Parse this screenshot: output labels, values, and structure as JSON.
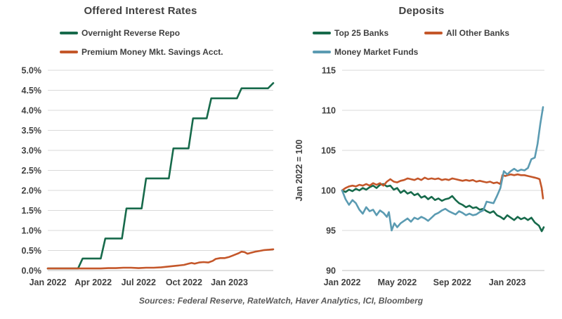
{
  "source_note": "Sources: Federal Reserve, RateWatch, Haver Analytics, ICI, Bloomberg",
  "colors": {
    "green": "#176a4b",
    "orange": "#c4572a",
    "blue": "#5b9bb2",
    "grid": "#d9d9d9",
    "axis": "#bfbfbf",
    "text": "#404040",
    "source_text": "#595959"
  },
  "chart_data": [
    {
      "id": "rates",
      "type": "line",
      "title": "Offered Interest Rates",
      "xlabel": "",
      "ylabel": "",
      "xlim": [
        0,
        14.9
      ],
      "ylim": [
        0,
        5
      ],
      "grid": true,
      "legend_position": "top-left-stacked",
      "y_ticks": [
        0,
        0.5,
        1,
        1.5,
        2,
        2.5,
        3,
        3.5,
        4,
        4.5,
        5
      ],
      "y_tick_labels": [
        "0.0%",
        "0.5%",
        "1.0%",
        "1.5%",
        "2.0%",
        "2.5%",
        "3.0%",
        "3.5%",
        "4.0%",
        "4.5%",
        "5.0%"
      ],
      "x_ticks": [
        {
          "v": 0,
          "label": "Jan 2022"
        },
        {
          "v": 3,
          "label": "Apr 2022"
        },
        {
          "v": 6,
          "label": "Jul 2022"
        },
        {
          "v": 9,
          "label": "Oct 2022"
        },
        {
          "v": 12,
          "label": "Jan 2023"
        }
      ],
      "legend_rows": [
        [
          0
        ],
        [
          1
        ]
      ],
      "series": [
        {
          "name": "Overnight Reverse Repo",
          "color": "green",
          "points": [
            [
              0,
              0.05
            ],
            [
              2,
              0.05
            ],
            [
              2.3,
              0.3
            ],
            [
              3.5,
              0.3
            ],
            [
              3.8,
              0.8
            ],
            [
              4.9,
              0.8
            ],
            [
              5.2,
              1.55
            ],
            [
              6.2,
              1.55
            ],
            [
              6.5,
              2.3
            ],
            [
              8,
              2.3
            ],
            [
              8.3,
              3.05
            ],
            [
              9.3,
              3.05
            ],
            [
              9.6,
              3.8
            ],
            [
              10.5,
              3.8
            ],
            [
              10.8,
              4.3
            ],
            [
              12.5,
              4.3
            ],
            [
              12.8,
              4.55
            ],
            [
              14.55,
              4.55
            ],
            [
              14.9,
              4.68
            ]
          ]
        },
        {
          "name": "Premium Money Mkt. Savings Acct.",
          "color": "orange",
          "points": [
            [
              0,
              0.05
            ],
            [
              1,
              0.05
            ],
            [
              2,
              0.05
            ],
            [
              3,
              0.05
            ],
            [
              3.5,
              0.05
            ],
            [
              4,
              0.06
            ],
            [
              4.5,
              0.06
            ],
            [
              5,
              0.07
            ],
            [
              5.5,
              0.07
            ],
            [
              6,
              0.06
            ],
            [
              6.5,
              0.07
            ],
            [
              7,
              0.07
            ],
            [
              7.5,
              0.08
            ],
            [
              8,
              0.1
            ],
            [
              8.5,
              0.12
            ],
            [
              9,
              0.14
            ],
            [
              9.3,
              0.17
            ],
            [
              9.5,
              0.19
            ],
            [
              9.7,
              0.17
            ],
            [
              10,
              0.2
            ],
            [
              10.3,
              0.21
            ],
            [
              10.6,
              0.2
            ],
            [
              10.9,
              0.24
            ],
            [
              11.1,
              0.29
            ],
            [
              11.4,
              0.31
            ],
            [
              11.7,
              0.31
            ],
            [
              12,
              0.34
            ],
            [
              12.2,
              0.37
            ],
            [
              12.4,
              0.4
            ],
            [
              12.6,
              0.43
            ],
            [
              12.8,
              0.47
            ],
            [
              13,
              0.46
            ],
            [
              13.2,
              0.42
            ],
            [
              13.4,
              0.44
            ],
            [
              13.7,
              0.47
            ],
            [
              14,
              0.49
            ],
            [
              14.3,
              0.51
            ],
            [
              14.6,
              0.52
            ],
            [
              14.9,
              0.53
            ]
          ]
        }
      ]
    },
    {
      "id": "deposits",
      "type": "line",
      "title": "Deposits",
      "xlabel": "",
      "ylabel": "Jan 2022 = 100",
      "xlim": [
        0,
        14.7
      ],
      "ylim": [
        90,
        115
      ],
      "grid": true,
      "legend_position": "top-two-columns",
      "y_ticks": [
        90,
        95,
        100,
        105,
        110,
        115
      ],
      "y_tick_labels": [
        "90",
        "95",
        "100",
        "105",
        "110",
        "115"
      ],
      "x_ticks": [
        {
          "v": 0,
          "label": "Jan 2022"
        },
        {
          "v": 4,
          "label": "May 2022"
        },
        {
          "v": 8,
          "label": "Sep 2022"
        },
        {
          "v": 12,
          "label": "Jan 2023"
        }
      ],
      "legend_rows": [
        [
          0,
          1
        ],
        [
          2
        ]
      ],
      "series": [
        {
          "name": "Top 25 Banks",
          "color": "green",
          "points": [
            [
              0,
              100
            ],
            [
              0.25,
              99.8
            ],
            [
              0.5,
              100.1
            ],
            [
              0.75,
              99.9
            ],
            [
              1,
              100.2
            ],
            [
              1.25,
              100
            ],
            [
              1.5,
              100.3
            ],
            [
              1.75,
              100.1
            ],
            [
              2,
              100.4
            ],
            [
              2.25,
              100.6
            ],
            [
              2.5,
              100.3
            ],
            [
              2.75,
              100.7
            ],
            [
              3,
              100.8
            ],
            [
              3.25,
              100.5
            ],
            [
              3.5,
              100.6
            ],
            [
              3.75,
              100.1
            ],
            [
              4,
              100.3
            ],
            [
              4.25,
              99.7
            ],
            [
              4.5,
              100
            ],
            [
              4.75,
              99.6
            ],
            [
              5,
              99.8
            ],
            [
              5.25,
              99.4
            ],
            [
              5.5,
              99.6
            ],
            [
              5.75,
              99.1
            ],
            [
              6,
              99.3
            ],
            [
              6.25,
              98.9
            ],
            [
              6.5,
              99.2
            ],
            [
              6.75,
              98.8
            ],
            [
              7,
              99
            ],
            [
              7.25,
              98.7
            ],
            [
              7.5,
              98.9
            ],
            [
              7.75,
              99
            ],
            [
              8,
              99.3
            ],
            [
              8.25,
              98.8
            ],
            [
              8.5,
              98.4
            ],
            [
              8.75,
              98.2
            ],
            [
              9,
              97.9
            ],
            [
              9.25,
              98.1
            ],
            [
              9.5,
              97.8
            ],
            [
              9.75,
              97.9
            ],
            [
              10,
              97.6
            ],
            [
              10.25,
              97.7
            ],
            [
              10.5,
              97.4
            ],
            [
              10.75,
              97.2
            ],
            [
              11,
              97.4
            ],
            [
              11.25,
              96.9
            ],
            [
              11.5,
              96.7
            ],
            [
              11.75,
              96.4
            ],
            [
              12,
              96.9
            ],
            [
              12.25,
              96.6
            ],
            [
              12.5,
              96.3
            ],
            [
              12.75,
              96.7
            ],
            [
              13,
              96.4
            ],
            [
              13.25,
              96.6
            ],
            [
              13.5,
              96.3
            ],
            [
              13.75,
              96.6
            ],
            [
              14,
              96
            ],
            [
              14.15,
              95.8
            ],
            [
              14.3,
              95.6
            ],
            [
              14.5,
              94.9
            ],
            [
              14.65,
              95.4
            ]
          ]
        },
        {
          "name": "All Other Banks",
          "color": "orange",
          "points": [
            [
              0,
              100
            ],
            [
              0.25,
              100.3
            ],
            [
              0.5,
              100.5
            ],
            [
              0.75,
              100.6
            ],
            [
              1,
              100.5
            ],
            [
              1.25,
              100.7
            ],
            [
              1.5,
              100.6
            ],
            [
              1.75,
              100.8
            ],
            [
              2,
              100.6
            ],
            [
              2.25,
              100.9
            ],
            [
              2.5,
              100.7
            ],
            [
              2.75,
              100.9
            ],
            [
              3,
              100.6
            ],
            [
              3.25,
              101.1
            ],
            [
              3.5,
              101.4
            ],
            [
              3.75,
              101.1
            ],
            [
              4,
              101
            ],
            [
              4.25,
              101.2
            ],
            [
              4.5,
              101.3
            ],
            [
              4.75,
              101.5
            ],
            [
              5,
              101.4
            ],
            [
              5.25,
              101.3
            ],
            [
              5.5,
              101.5
            ],
            [
              5.75,
              101.3
            ],
            [
              6,
              101.6
            ],
            [
              6.25,
              101.4
            ],
            [
              6.5,
              101.5
            ],
            [
              6.75,
              101.4
            ],
            [
              7,
              101.5
            ],
            [
              7.25,
              101.3
            ],
            [
              7.5,
              101.4
            ],
            [
              7.75,
              101.3
            ],
            [
              8,
              101.5
            ],
            [
              8.25,
              101.4
            ],
            [
              8.5,
              101.3
            ],
            [
              8.75,
              101.2
            ],
            [
              9,
              101.3
            ],
            [
              9.25,
              101.2
            ],
            [
              9.5,
              101.3
            ],
            [
              9.75,
              101.1
            ],
            [
              10,
              101.2
            ],
            [
              10.25,
              101.1
            ],
            [
              10.5,
              101
            ],
            [
              10.75,
              101.1
            ],
            [
              11,
              100.9
            ],
            [
              11.25,
              101
            ],
            [
              11.5,
              100.8
            ],
            [
              11.65,
              101.9
            ],
            [
              11.85,
              101.8
            ],
            [
              12.05,
              101.9
            ],
            [
              12.25,
              102
            ],
            [
              12.5,
              101.9
            ],
            [
              12.75,
              102
            ],
            [
              13,
              101.9
            ],
            [
              13.25,
              101.9
            ],
            [
              13.5,
              101.8
            ],
            [
              13.75,
              101.7
            ],
            [
              14,
              101.6
            ],
            [
              14.2,
              101.5
            ],
            [
              14.35,
              101.4
            ],
            [
              14.5,
              100.3
            ],
            [
              14.6,
              99
            ]
          ]
        },
        {
          "name": "Money Market Funds",
          "color": "blue",
          "points": [
            [
              0,
              100
            ],
            [
              0.25,
              98.9
            ],
            [
              0.5,
              98.2
            ],
            [
              0.75,
              98.8
            ],
            [
              1,
              98.4
            ],
            [
              1.25,
              97.6
            ],
            [
              1.5,
              97.1
            ],
            [
              1.75,
              97.9
            ],
            [
              2,
              97.4
            ],
            [
              2.25,
              97.6
            ],
            [
              2.5,
              96.9
            ],
            [
              2.75,
              97.5
            ],
            [
              3,
              97.2
            ],
            [
              3.25,
              96.7
            ],
            [
              3.4,
              97.3
            ],
            [
              3.6,
              95
            ],
            [
              3.8,
              95.9
            ],
            [
              4,
              95.4
            ],
            [
              4.25,
              95.9
            ],
            [
              4.5,
              96.2
            ],
            [
              4.75,
              96.5
            ],
            [
              5,
              96.1
            ],
            [
              5.25,
              96.6
            ],
            [
              5.5,
              96.4
            ],
            [
              5.75,
              96.7
            ],
            [
              6,
              96.5
            ],
            [
              6.25,
              96.2
            ],
            [
              6.5,
              96.6
            ],
            [
              6.75,
              97
            ],
            [
              7,
              97.2
            ],
            [
              7.25,
              97.5
            ],
            [
              7.5,
              97.7
            ],
            [
              7.75,
              97.4
            ],
            [
              8,
              97.2
            ],
            [
              8.25,
              97
            ],
            [
              8.5,
              97.4
            ],
            [
              8.75,
              97.2
            ],
            [
              9,
              96.9
            ],
            [
              9.25,
              97.1
            ],
            [
              9.5,
              96.9
            ],
            [
              9.75,
              97
            ],
            [
              10,
              97.3
            ],
            [
              10.25,
              97.5
            ],
            [
              10.5,
              98.6
            ],
            [
              10.75,
              98.5
            ],
            [
              11,
              98.4
            ],
            [
              11.25,
              99.3
            ],
            [
              11.5,
              100.3
            ],
            [
              11.75,
              102.4
            ],
            [
              12,
              102
            ],
            [
              12.25,
              102.4
            ],
            [
              12.5,
              102.7
            ],
            [
              12.75,
              102.4
            ],
            [
              13,
              102.6
            ],
            [
              13.25,
              102.5
            ],
            [
              13.5,
              102.8
            ],
            [
              13.75,
              103.9
            ],
            [
              14,
              104.1
            ],
            [
              14.2,
              105.8
            ],
            [
              14.4,
              108.3
            ],
            [
              14.6,
              110.4
            ]
          ]
        }
      ]
    }
  ]
}
